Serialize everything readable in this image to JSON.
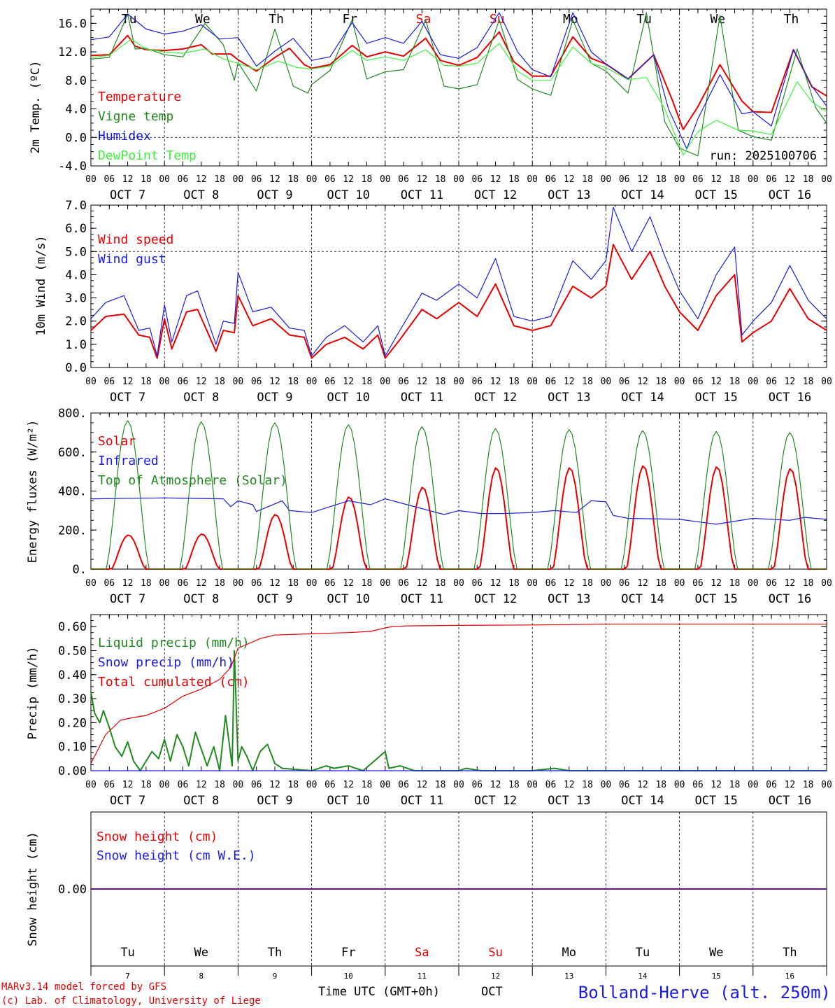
{
  "colors": {
    "red": "#e60000",
    "green": "#1f8a1f",
    "blue": "#1a1ae6",
    "lightgreen": "#3ef03e",
    "black": "#000000",
    "grey": "#555555"
  },
  "hour_ticks": [
    "00",
    "06",
    "12",
    "18"
  ],
  "dates": [
    "OCT  7",
    "OCT  8",
    "OCT  9",
    "OCT 10",
    "OCT 11",
    "OCT 12",
    "OCT 13",
    "OCT 14",
    "OCT 15",
    "OCT 16"
  ],
  "weekdays": [
    "Tu",
    "We",
    "Th",
    "Fr",
    "Sa",
    "Su",
    "Mo",
    "Tu",
    "We",
    "Th"
  ],
  "weekday_colors": [
    "#000000",
    "#000000",
    "#000000",
    "#000000",
    "#e60000",
    "#e60000",
    "#000000",
    "#000000",
    "#000000",
    "#000000"
  ],
  "day_numbers": [
    "7",
    "8",
    "9",
    "10",
    "11",
    "12",
    "13",
    "14",
    "15",
    "16"
  ],
  "run_label": "run: 2025100706",
  "xlabel": "Time UTC (GMT+0h)",
  "month_label": "OCT",
  "footer": {
    "model": "MARv3.14 model forced by GFS",
    "credit": "(c) Lab. of Climatology, University of Liege",
    "station": "Bolland-Herve (alt. 250m)"
  },
  "chart_data": [
    {
      "type": "line",
      "ylabel": "2m Temp. (ºC)",
      "ylim": [
        -4,
        18
      ],
      "yticks": [
        -4,
        0,
        4,
        8,
        12,
        16
      ],
      "ytick_labels": [
        "-4.0",
        "0.0",
        "4.0",
        "8.0",
        "12.0",
        "16.0"
      ],
      "hline": 0,
      "xrange_days": [
        0,
        10
      ],
      "series": [
        {
          "name": "Temperature",
          "color": "#e60000",
          "x": [
            0,
            0.25,
            0.5,
            0.6,
            0.75,
            1,
            1.25,
            1.5,
            1.65,
            1.9,
            2,
            2.25,
            2.5,
            2.7,
            2.9,
            3,
            3.25,
            3.55,
            3.75,
            4,
            4.25,
            4.55,
            4.75,
            5,
            5.25,
            5.55,
            5.75,
            6,
            6.25,
            6.55,
            6.8,
            7,
            7.3,
            7.65,
            7.9,
            8.05,
            8.25,
            8.55,
            8.85,
            9,
            9.25,
            9.55,
            9.8,
            10
          ],
          "values": [
            11.5,
            11.6,
            14.3,
            12.8,
            12.3,
            12.2,
            12.4,
            13,
            11.7,
            11.7,
            10.9,
            9.3,
            11.2,
            12.5,
            10.2,
            9.7,
            10.2,
            12.9,
            11.3,
            12,
            11.4,
            13.9,
            10.8,
            10.1,
            11.2,
            14.8,
            10.6,
            8.6,
            8.6,
            14.1,
            11.1,
            10.3,
            8.2,
            11.6,
            5.3,
            1.1,
            4.3,
            10.2,
            5.1,
            3.6,
            3.5,
            12.3,
            7.1,
            5.8
          ]
        },
        {
          "name": "Vigne temp",
          "color": "#1f8a1f",
          "x": [
            0,
            0.25,
            0.5,
            0.6,
            0.75,
            1,
            1.25,
            1.55,
            1.8,
            1.95,
            2,
            2.25,
            2.5,
            2.75,
            2.95,
            3,
            3.25,
            3.55,
            3.75,
            4,
            4.25,
            4.55,
            4.8,
            5,
            5.25,
            5.55,
            5.8,
            6,
            6.25,
            6.55,
            6.8,
            7,
            7.3,
            7.55,
            7.8,
            8,
            8.25,
            8.55,
            8.8,
            9,
            9.25,
            9.6,
            9.85,
            10
          ],
          "values": [
            11,
            11.2,
            17.3,
            12.4,
            12.5,
            11.6,
            11.3,
            16,
            13,
            8,
            10.5,
            6.5,
            15.2,
            7.2,
            6.2,
            7.4,
            9.4,
            16.5,
            8.2,
            9.2,
            9.5,
            16.5,
            7.2,
            6.8,
            7.4,
            16.5,
            8.1,
            6.8,
            5.9,
            16.5,
            10.4,
            9.3,
            6.2,
            17.5,
            2.2,
            -1.5,
            -2.6,
            17.1,
            1,
            0.1,
            -0.4,
            12.4,
            4.2,
            2
          ]
        },
        {
          "name": "Humidex",
          "color": "#1a1ae6",
          "x": [
            0,
            0.25,
            0.5,
            0.75,
            1,
            1.25,
            1.5,
            1.75,
            2,
            2.25,
            2.5,
            2.75,
            3,
            3.25,
            3.55,
            3.75,
            4,
            4.25,
            4.5,
            4.75,
            5,
            5.25,
            5.55,
            5.8,
            6,
            6.25,
            6.55,
            6.8,
            7,
            7.3,
            7.65,
            7.85,
            8.1,
            8.25,
            8.55,
            8.85,
            9,
            9.25,
            9.55,
            9.8,
            10
          ],
          "values": [
            13.7,
            14.1,
            17.3,
            15.2,
            14.5,
            14.9,
            15.8,
            13.8,
            14,
            10,
            12.1,
            13.9,
            10.8,
            11.3,
            16.1,
            13.2,
            14,
            13.2,
            16.3,
            11.6,
            11.1,
            12.6,
            17.5,
            12,
            9.5,
            8.5,
            17.5,
            12,
            10.3,
            8.2,
            11.6,
            4,
            -1.6,
            2.6,
            8.8,
            3.3,
            3.6,
            1.6,
            12.3,
            7.2,
            4.4
          ]
        },
        {
          "name": "DewPoint Temp",
          "color": "#3ef03e",
          "x": [
            0,
            0.25,
            0.55,
            0.75,
            1,
            1.25,
            1.55,
            1.8,
            2,
            2.25,
            2.55,
            2.8,
            3,
            3.25,
            3.55,
            3.75,
            4,
            4.25,
            4.55,
            4.8,
            5,
            5.25,
            5.55,
            5.8,
            6,
            6.25,
            6.55,
            6.8,
            7,
            7.3,
            7.55,
            7.8,
            8.05,
            8.25,
            8.5,
            8.8,
            9,
            9.25,
            9.6,
            9.8,
            10
          ],
          "values": [
            11.2,
            11.5,
            13.8,
            12.4,
            12,
            11.8,
            12.4,
            11,
            10.4,
            9.5,
            10.7,
            9.8,
            9.6,
            10,
            12.2,
            10.8,
            11.3,
            10.8,
            12.3,
            10.1,
            10,
            10.4,
            13.2,
            9.3,
            8,
            8,
            12.7,
            10.4,
            9.8,
            8.1,
            8.4,
            4,
            -2.5,
            0.8,
            2.4,
            1,
            0.9,
            0.4,
            7.8,
            5,
            3.6
          ]
        }
      ]
    },
    {
      "type": "line",
      "ylabel": "10m Wind (m/s)",
      "ylim": [
        0,
        7
      ],
      "yticks": [
        0,
        1,
        2,
        3,
        4,
        5,
        6,
        7
      ],
      "ytick_labels": [
        "0.0",
        "1.0",
        "2.0",
        "3.0",
        "4.0",
        "5.0",
        "6.0",
        "7.0"
      ],
      "hline": 5,
      "xrange_days": [
        0,
        10
      ],
      "series": [
        {
          "name": "Wind speed",
          "color": "#e60000",
          "x": [
            0,
            0.2,
            0.45,
            0.65,
            0.8,
            0.9,
            1,
            1.1,
            1.3,
            1.45,
            1.7,
            1.8,
            1.95,
            2,
            2.2,
            2.45,
            2.7,
            2.9,
            3,
            3.2,
            3.45,
            3.7,
            3.9,
            4,
            4.2,
            4.5,
            4.7,
            5,
            5.25,
            5.5,
            5.75,
            6,
            6.25,
            6.55,
            6.8,
            7,
            7.1,
            7.35,
            7.6,
            7.8,
            8,
            8.25,
            8.5,
            8.75,
            8.85,
            9,
            9.25,
            9.5,
            9.75,
            10
          ],
          "values": [
            1.6,
            2.2,
            2.3,
            1.4,
            1.3,
            0.4,
            2.1,
            0.8,
            2.4,
            2.5,
            0.7,
            1.6,
            1.5,
            3.1,
            1.8,
            2.1,
            1.4,
            1.3,
            0.4,
            1,
            1.3,
            0.8,
            1.4,
            0.4,
            1.2,
            2.5,
            2.1,
            2.8,
            2.2,
            3.6,
            1.8,
            1.6,
            1.8,
            3.5,
            3,
            3.5,
            5.3,
            3.8,
            5,
            3.5,
            2.4,
            1.6,
            3.1,
            4,
            1.1,
            1.5,
            2,
            3.4,
            2.1,
            1.6
          ]
        },
        {
          "name": "Wind gust",
          "color": "#1a1ae6",
          "x": [
            0,
            0.2,
            0.45,
            0.65,
            0.8,
            0.9,
            1,
            1.1,
            1.3,
            1.45,
            1.7,
            1.8,
            1.95,
            2,
            2.2,
            2.45,
            2.7,
            2.9,
            3,
            3.2,
            3.45,
            3.7,
            3.9,
            4,
            4.2,
            4.5,
            4.7,
            5,
            5.25,
            5.5,
            5.75,
            6,
            6.25,
            6.55,
            6.8,
            7,
            7.1,
            7.35,
            7.6,
            7.8,
            8,
            8.25,
            8.5,
            8.75,
            8.85,
            9,
            9.25,
            9.5,
            9.75,
            10
          ],
          "values": [
            2.1,
            2.8,
            3.1,
            1.6,
            1.7,
            0.5,
            2.7,
            1.1,
            3.1,
            3.3,
            1,
            2,
            1.9,
            4.1,
            2.4,
            2.6,
            1.7,
            1.6,
            0.5,
            1.3,
            1.8,
            1.1,
            1.8,
            0.5,
            1.6,
            3.2,
            2.9,
            3.6,
            3,
            4.7,
            2.2,
            2,
            2.2,
            4.6,
            3.8,
            4.6,
            6.9,
            5,
            6.5,
            4.8,
            3.3,
            2.1,
            4,
            5.2,
            1.4,
            2,
            2.8,
            4.4,
            2.9,
            2.1
          ]
        }
      ]
    },
    {
      "type": "line",
      "ylabel": "Energy fluxes (W/m²)",
      "ylim": [
        0,
        800
      ],
      "yticks": [
        0,
        200,
        400,
        600,
        800
      ],
      "ytick_labels": [
        "0.",
        "200.",
        "400.",
        "600.",
        "800."
      ],
      "xrange_days": [
        0,
        10
      ],
      "series": [
        {
          "name": "Solar",
          "color": "#e60000",
          "day_peaks": [
            175,
            180,
            280,
            370,
            420,
            520,
            520,
            530,
            525,
            515
          ]
        },
        {
          "name": "Infrared",
          "color": "#1a1ae6",
          "x": [
            0,
            1,
            1.8,
            1.9,
            2,
            2.2,
            2.25,
            2.6,
            2.7,
            3,
            3.5,
            3.8,
            4,
            4.3,
            4.6,
            4.8,
            5,
            5.3,
            5.6,
            6,
            6.3,
            6.6,
            6.8,
            7,
            7.1,
            7.3,
            8,
            8.5,
            9,
            9.5,
            9.7,
            10
          ],
          "values": [
            360,
            365,
            360,
            320,
            350,
            330,
            295,
            350,
            300,
            290,
            350,
            330,
            360,
            330,
            300,
            280,
            300,
            285,
            285,
            290,
            300,
            290,
            350,
            345,
            275,
            260,
            255,
            230,
            260,
            250,
            265,
            255
          ]
        },
        {
          "name": "Top of Atmosphere (Solar)",
          "color": "#1f8a1f",
          "day_peaks": [
            760,
            755,
            750,
            740,
            730,
            720,
            715,
            710,
            705,
            700
          ]
        }
      ]
    },
    {
      "type": "line",
      "ylabel": "Precip (mm/h)",
      "ylim": [
        0,
        0.65
      ],
      "yticks": [
        0,
        0.1,
        0.2,
        0.3,
        0.4,
        0.5,
        0.6
      ],
      "ytick_labels": [
        "0.00",
        "0.10",
        "0.20",
        "0.30",
        "0.40",
        "0.50",
        "0.60"
      ],
      "xrange_days": [
        0,
        10
      ],
      "series": [
        {
          "name": "Liquid precip (mm/h)",
          "color": "#1f8a1f",
          "x": [
            0,
            0.05,
            0.12,
            0.17,
            0.25,
            0.33,
            0.42,
            0.5,
            0.58,
            0.67,
            0.75,
            0.83,
            0.92,
            1,
            1.08,
            1.17,
            1.25,
            1.33,
            1.42,
            1.5,
            1.58,
            1.67,
            1.75,
            1.83,
            1.92,
            1.95,
            2,
            2.05,
            2.12,
            2.2,
            2.3,
            2.4,
            2.5,
            2.6,
            3,
            3.2,
            3.3,
            3.5,
            3.7,
            4,
            4.05,
            4.2,
            4.4,
            5,
            5.1,
            5.3,
            6,
            6.3,
            6.5,
            7,
            7.2,
            10
          ],
          "values": [
            0.33,
            0.24,
            0.2,
            0.25,
            0.18,
            0.1,
            0.06,
            0.12,
            0.04,
            0,
            0.04,
            0.08,
            0.05,
            0.13,
            0.04,
            0.15,
            0.1,
            0.02,
            0.16,
            0.09,
            0.02,
            0.1,
            0,
            0.23,
            0.02,
            0.5,
            0.04,
            0.1,
            0.06,
            0,
            0.08,
            0.11,
            0.03,
            0.01,
            0,
            0.02,
            0.01,
            0.02,
            0,
            0.08,
            0.01,
            0.02,
            0,
            0,
            0.01,
            0,
            0,
            0.01,
            0,
            0,
            0,
            0
          ]
        },
        {
          "name": "Snow precip (mm/h)",
          "color": "#1a1ae6",
          "x": [
            0,
            10
          ],
          "values": [
            0,
            0
          ]
        },
        {
          "name": "Total cumulated (cm)",
          "color": "#e60000",
          "x": [
            0,
            0.2,
            0.4,
            0.55,
            0.75,
            1,
            1.25,
            1.5,
            1.75,
            1.9,
            2,
            2.3,
            2.5,
            3,
            3.5,
            3.8,
            4,
            4.1,
            4.3,
            5,
            6,
            7,
            10
          ],
          "values": [
            0.03,
            0.15,
            0.21,
            0.22,
            0.23,
            0.26,
            0.31,
            0.34,
            0.38,
            0.43,
            0.51,
            0.55,
            0.565,
            0.57,
            0.575,
            0.58,
            0.595,
            0.6,
            0.603,
            0.605,
            0.607,
            0.61,
            0.61
          ]
        }
      ]
    },
    {
      "type": "line",
      "ylabel": "Snow height (cm)",
      "ylim": [
        -1,
        1
      ],
      "yticks": [
        0
      ],
      "ytick_labels": [
        "0.00"
      ],
      "xrange_days": [
        0,
        10
      ],
      "series": [
        {
          "name": "Snow height (cm)",
          "color": "#e60000",
          "x": [
            0,
            10
          ],
          "values": [
            0,
            0
          ]
        },
        {
          "name": "Snow height (cm W.E.)",
          "color": "#1a1ae6",
          "x": [
            0,
            10
          ],
          "values": [
            0,
            0
          ]
        }
      ]
    }
  ]
}
